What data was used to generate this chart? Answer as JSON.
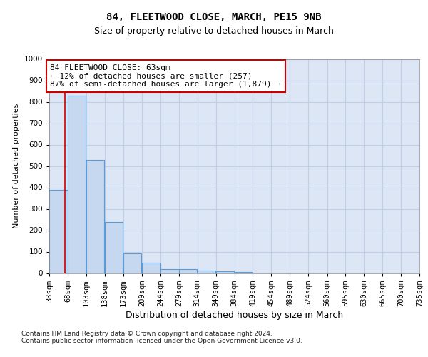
{
  "title": "84, FLEETWOOD CLOSE, MARCH, PE15 9NB",
  "subtitle": "Size of property relative to detached houses in March",
  "xlabel": "Distribution of detached houses by size in March",
  "ylabel": "Number of detached properties",
  "bins": [
    33,
    68,
    103,
    138,
    173,
    209,
    244,
    279,
    314,
    349,
    384,
    419,
    454,
    489,
    524,
    560,
    595,
    630,
    665,
    700,
    735
  ],
  "bar_values": [
    390,
    830,
    530,
    240,
    93,
    50,
    20,
    17,
    12,
    8,
    6,
    0,
    0,
    0,
    0,
    0,
    0,
    0,
    0,
    0
  ],
  "bar_color": "#c5d8f0",
  "bar_edge_color": "#5b9bd5",
  "grid_color": "#c0cfe4",
  "bg_color": "#dce6f5",
  "property_size": 63,
  "annotation_line1": "84 FLEETWOOD CLOSE: 63sqm",
  "annotation_line2": "← 12% of detached houses are smaller (257)",
  "annotation_line3": "87% of semi-detached houses are larger (1,879) →",
  "annotation_box_color": "white",
  "annotation_box_edge_color": "#cc0000",
  "vline_color": "#cc0000",
  "ylim": [
    0,
    1000
  ],
  "yticks": [
    0,
    100,
    200,
    300,
    400,
    500,
    600,
    700,
    800,
    900,
    1000
  ],
  "footer_text": "Contains HM Land Registry data © Crown copyright and database right 2024.\nContains public sector information licensed under the Open Government Licence v3.0.",
  "title_fontsize": 10,
  "subtitle_fontsize": 9,
  "xlabel_fontsize": 9,
  "ylabel_fontsize": 8,
  "tick_fontsize": 7.5,
  "annotation_fontsize": 8,
  "footer_fontsize": 6.5
}
